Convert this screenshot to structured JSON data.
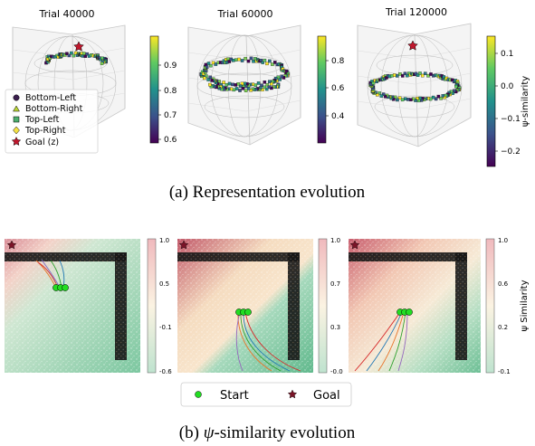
{
  "chart_data": [
    {
      "type": "scatter",
      "title": "Trial 40000",
      "colorbar": {
        "ticks": [
          "0.9",
          "0.8",
          "0.7",
          "0.6"
        ],
        "range": [
          0.57,
          0.98
        ],
        "colormap": "viridis"
      },
      "goal_marker_color": "#c0172d"
    },
    {
      "type": "scatter",
      "title": "Trial 60000",
      "colorbar": {
        "ticks": [
          "0.8",
          "0.6",
          "0.4"
        ],
        "range": [
          0.2,
          0.97
        ],
        "colormap": "viridis"
      }
    },
    {
      "type": "scatter",
      "title": "Trial 120000",
      "colorbar": {
        "ticks": [
          "0.1",
          "0.0",
          "−0.1",
          "−0.2"
        ],
        "range": [
          -0.23,
          0.15
        ],
        "colormap": "viridis",
        "label": "ψ-similarity"
      }
    },
    {
      "type": "heatmap",
      "colorbar": {
        "ticks": [
          "1.0",
          "0.5",
          "-0.1",
          "-0.6"
        ],
        "range": [
          -0.6,
          1.0
        ],
        "colormap": "green-to-red"
      },
      "start_points": 3
    },
    {
      "type": "heatmap",
      "colorbar": {
        "ticks": [
          "1.0",
          "0.7",
          "0.3",
          "-0.0"
        ],
        "range": [
          0.0,
          1.0
        ],
        "colormap": "green-to-red"
      },
      "start_points": 3
    },
    {
      "type": "heatmap",
      "colorbar": {
        "ticks": [
          "1.0",
          "0.6",
          "0.2",
          "-0.1"
        ],
        "range": [
          -0.1,
          1.0
        ],
        "colormap": "green-to-red",
        "label": "ψ Similarity"
      },
      "start_points": 3
    }
  ],
  "legend_top": {
    "items": [
      {
        "label": "Bottom-Left",
        "marker": "circle",
        "color": "#3b1f4e"
      },
      {
        "label": "Bottom-Right",
        "marker": "triangle",
        "color": "#b8d435"
      },
      {
        "label": "Top-Left",
        "marker": "square",
        "color": "#4cae6e"
      },
      {
        "label": "Top-Right",
        "marker": "diamond",
        "color": "#f4e244"
      },
      {
        "label": "Goal (z)",
        "marker": "star",
        "color": "#c0172d"
      }
    ]
  },
  "legend_bottom": {
    "items": [
      {
        "label": "Start",
        "marker": "circle",
        "color": "#22dd22"
      },
      {
        "label": "Goal",
        "marker": "star",
        "color": "#7a1428"
      }
    ]
  },
  "captions": {
    "a": "(a) Representation evolution",
    "b_prefix": "(b) ",
    "b_symbol": "ψ",
    "b_suffix": "-similarity evolution"
  }
}
